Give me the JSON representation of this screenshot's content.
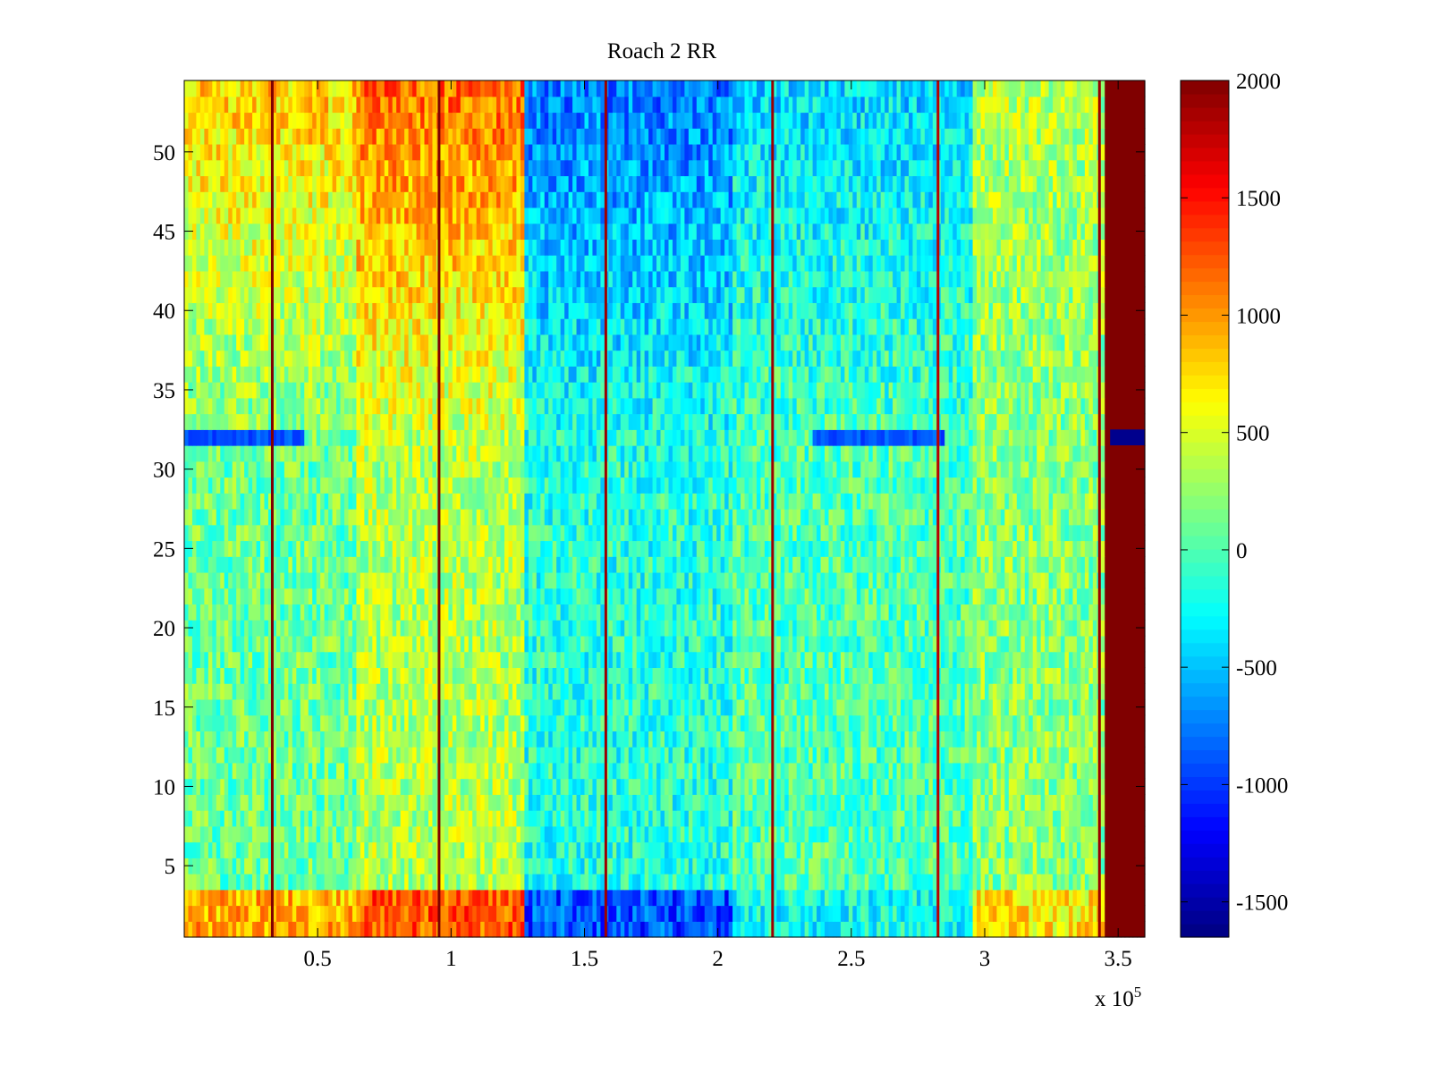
{
  "chart_data": {
    "type": "heatmap",
    "title": "Roach 2 RR",
    "xlabel": "",
    "ylabel": "",
    "x_exponent_label": "x 10",
    "x_exponent_power": "5",
    "xlim": [
      0,
      360000
    ],
    "ylim": [
      0.5,
      54.5
    ],
    "x_ticks": [
      {
        "value": 50000,
        "label": "0.5"
      },
      {
        "value": 100000,
        "label": "1"
      },
      {
        "value": 150000,
        "label": "1.5"
      },
      {
        "value": 200000,
        "label": "2"
      },
      {
        "value": 250000,
        "label": "2.5"
      },
      {
        "value": 300000,
        "label": "3"
      },
      {
        "value": 350000,
        "label": "3.5"
      }
    ],
    "y_ticks": [
      {
        "value": 5,
        "label": "5"
      },
      {
        "value": 10,
        "label": "10"
      },
      {
        "value": 15,
        "label": "15"
      },
      {
        "value": 20,
        "label": "20"
      },
      {
        "value": 25,
        "label": "25"
      },
      {
        "value": 30,
        "label": "30"
      },
      {
        "value": 35,
        "label": "35"
      },
      {
        "value": 40,
        "label": "40"
      },
      {
        "value": 45,
        "label": "45"
      },
      {
        "value": 50,
        "label": "50"
      }
    ],
    "colorbar": {
      "colormap": "jet",
      "clim": [
        -1650,
        2000
      ],
      "ticks": [
        {
          "value": 2000,
          "label": "2000"
        },
        {
          "value": 1500,
          "label": "1500"
        },
        {
          "value": 1000,
          "label": "1000"
        },
        {
          "value": 500,
          "label": "500"
        },
        {
          "value": 0,
          "label": "0"
        },
        {
          "value": -500,
          "label": "-500"
        },
        {
          "value": -1000,
          "label": "-1000"
        },
        {
          "value": -1500,
          "label": "-1500"
        }
      ]
    },
    "rows": 54,
    "x_segments": [
      {
        "x0": 0,
        "x1": 65000,
        "top": 800,
        "bottom": 100
      },
      {
        "x0": 65000,
        "x1": 128000,
        "top": 1150,
        "bottom": 350
      },
      {
        "x0": 128000,
        "x1": 205000,
        "top": -750,
        "bottom": -150
      },
      {
        "x0": 205000,
        "x1": 295000,
        "top": -400,
        "bottom": 0
      },
      {
        "x0": 295000,
        "x1": 345000,
        "top": 350,
        "bottom": 200
      },
      {
        "x0": 345000,
        "x1": 360000,
        "top": 2000,
        "bottom": 2000
      }
    ],
    "edge_rows_value_offset": 400,
    "anomalous_row": {
      "row": 32,
      "value": -900
    },
    "vertical_lines": [
      {
        "x": 33000,
        "value": 2000
      },
      {
        "x": 95500,
        "value": 2000
      },
      {
        "x": 158000,
        "value": 1900
      },
      {
        "x": 220500,
        "value": 1900
      },
      {
        "x": 282500,
        "value": 1800
      },
      {
        "x": 343000,
        "value": 1900
      }
    ],
    "noise_amplitude": 350
  }
}
